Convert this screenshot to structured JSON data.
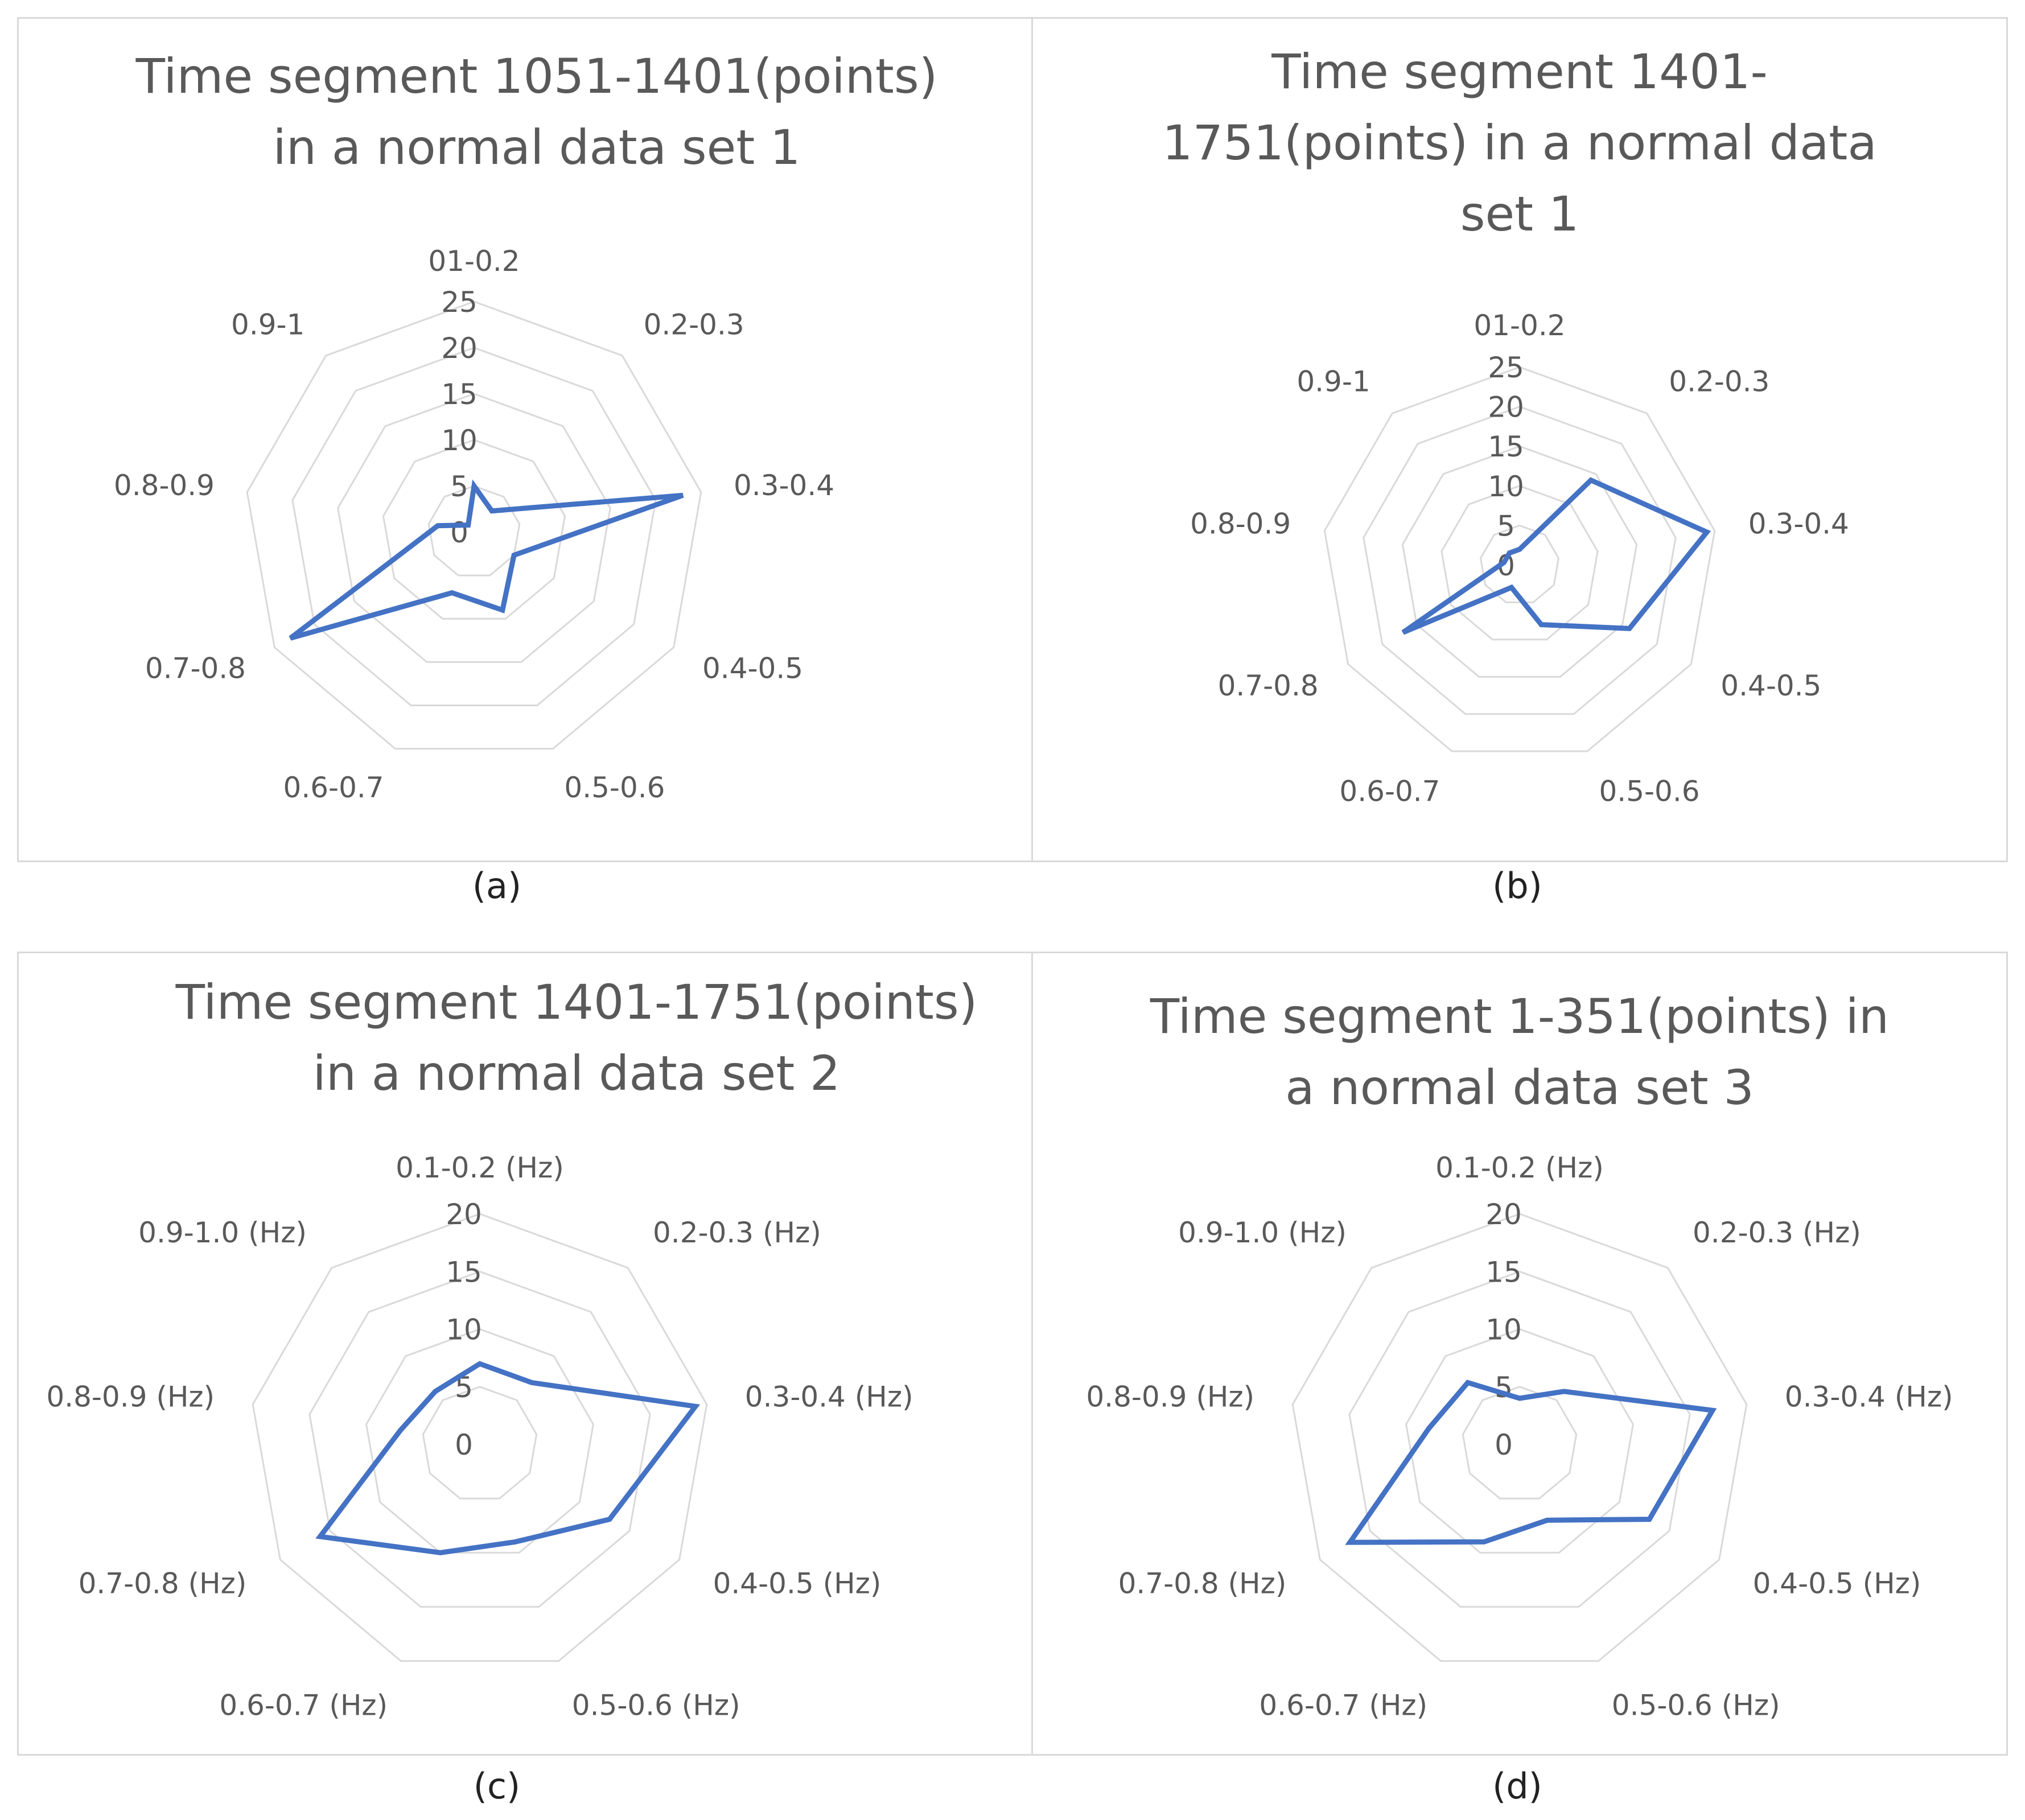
{
  "chart_data": [
    {
      "type": "radar",
      "sublabel": "(a)",
      "title_lines": [
        "Time segment 1051-1401(points)",
        "in a normal data set 1"
      ],
      "categories": [
        "01-0.2",
        "0.2-0.3",
        "0.3-0.4",
        "0.4-0.5",
        "0.5-0.6",
        "0.6-0.7",
        "0.7-0.8",
        "0.8-0.9",
        "0.9-1"
      ],
      "ticks": [
        "0",
        "5",
        "10",
        "15",
        "20",
        "25"
      ],
      "rmax": 25,
      "series": [
        {
          "values": [
            5,
            3,
            23,
            5,
            9,
            7,
            23,
            4,
            1
          ]
        }
      ],
      "line_color": "#4472c4",
      "grid": true,
      "legend": "none"
    },
    {
      "type": "radar",
      "sublabel": "(b)",
      "title_lines": [
        "Time segment 1401-",
        "1751(points) in a normal data",
        "set 1"
      ],
      "categories": [
        "01-0.2",
        "0.2-0.3",
        "0.3-0.4",
        "0.4-0.5",
        "0.5-0.6",
        "0.6-0.7",
        "0.7-0.8",
        "0.8-0.9",
        "0.9-1"
      ],
      "ticks": [
        "0",
        "5",
        "10",
        "15",
        "20",
        "25"
      ],
      "rmax": 25,
      "series": [
        {
          "values": [
            2,
            14,
            24,
            16,
            8,
            3,
            17,
            2,
            2
          ]
        }
      ],
      "line_color": "#4472c4",
      "grid": true,
      "legend": "none"
    },
    {
      "type": "radar",
      "sublabel": "(c)",
      "title_lines": [
        "Time segment 1401-1751(points)",
        "in a normal data set 2"
      ],
      "categories": [
        "0.1-0.2 (Hz)",
        "0.2-0.3 (Hz)",
        "0.3-0.4 (Hz)",
        "0.4-0.5 (Hz)",
        "0.5-0.6 (Hz)",
        "0.6-0.7 (Hz)",
        "0.7-0.8 (Hz)",
        "0.8-0.9 (Hz)",
        "0.9-1.0 (Hz)"
      ],
      "ticks": [
        "0",
        "5",
        "10",
        "15",
        "20"
      ],
      "rmax": 20,
      "series": [
        {
          "values": [
            7,
            7,
            19,
            13,
            9,
            10,
            16,
            7,
            6
          ]
        }
      ],
      "line_color": "#4472c4",
      "grid": true,
      "legend": "none"
    },
    {
      "type": "radar",
      "sublabel": "(d)",
      "title_lines": [
        "Time segment 1-351(points) in",
        "a normal data set 3"
      ],
      "categories": [
        "0.1-0.2 (Hz)",
        "0.2-0.3 (Hz)",
        "0.3-0.4 (Hz)",
        "0.4-0.5 (Hz)",
        "0.5-0.6 (Hz)",
        "0.6-0.7 (Hz)",
        "0.7-0.8 (Hz)",
        "0.8-0.9 (Hz)",
        "0.9-1.0 (Hz)"
      ],
      "ticks": [
        "0",
        "5",
        "10",
        "15",
        "20"
      ],
      "rmax": 20,
      "series": [
        {
          "values": [
            4,
            6,
            17,
            13,
            7,
            9,
            17,
            8,
            7
          ]
        }
      ],
      "line_color": "#4472c4",
      "grid": true,
      "legend": "none"
    }
  ]
}
